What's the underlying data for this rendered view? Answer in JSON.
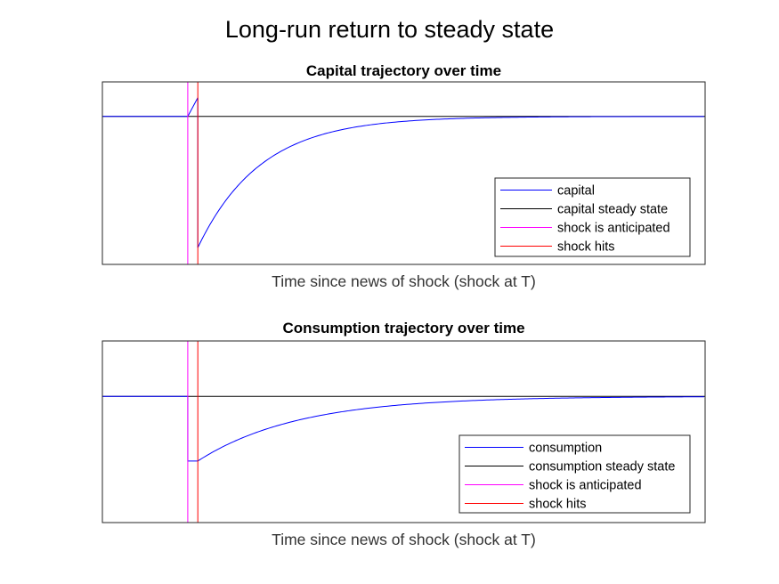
{
  "figure": {
    "suptitle": "Long-run return to steady state"
  },
  "chart_data": [
    {
      "type": "line",
      "title": "Capital trajectory over time",
      "xlabel": "Time since news of shock (shock at T)",
      "ylabel": "",
      "grid": false,
      "legend_position": "bottom-right",
      "x_range": [
        0,
        60
      ],
      "y_range": [
        -1.5,
        0.35
      ],
      "anticipated_at": 8.5,
      "shock_at": 9.5,
      "series": [
        {
          "name": "capital",
          "color": "#0000ff",
          "steady": 0,
          "pre_shock_peak": 0.19,
          "drop_to": -1.33,
          "decay_rate": 0.16
        },
        {
          "name": "capital steady state",
          "color": "#000000",
          "value": 0
        },
        {
          "name": "shock is anticipated",
          "color": "#ff00ff",
          "x": 8.5
        },
        {
          "name": "shock hits",
          "color": "#ff0000",
          "x": 9.5
        }
      ]
    },
    {
      "type": "line",
      "title": "Consumption trajectory over time",
      "xlabel": "Time since news of shock (shock at T)",
      "ylabel": "",
      "grid": false,
      "legend_position": "bottom-right",
      "x_range": [
        0,
        60
      ],
      "y_range": [
        -2.05,
        0.9
      ],
      "anticipated_at": 8.5,
      "shock_at": 9.5,
      "series": [
        {
          "name": "consumption",
          "color": "#0000ff",
          "steady": 0,
          "drop_to": -1.05,
          "decay_rate": 0.1
        },
        {
          "name": "consumption steady state",
          "color": "#000000",
          "value": 0
        },
        {
          "name": "shock is anticipated",
          "color": "#ff00ff",
          "x": 8.5
        },
        {
          "name": "shock hits",
          "color": "#ff0000",
          "x": 9.5
        }
      ]
    }
  ]
}
